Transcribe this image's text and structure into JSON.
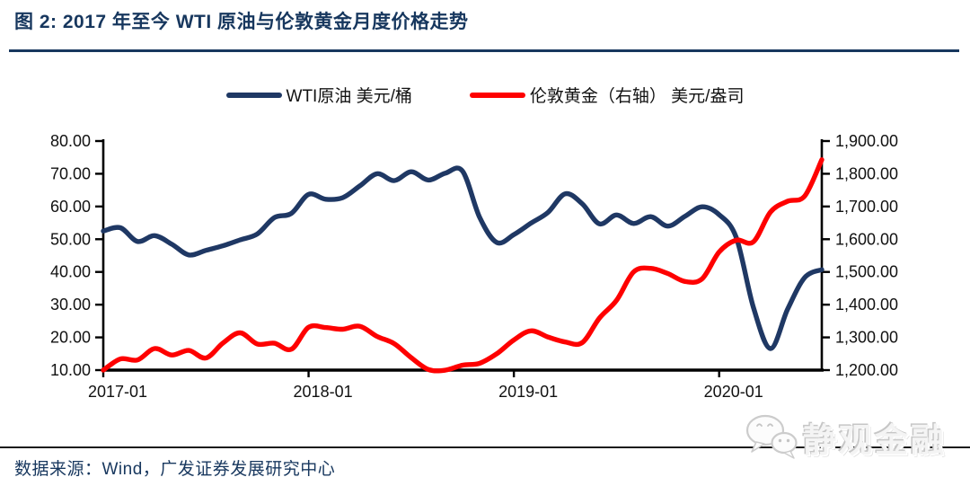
{
  "title": "图 2:  2017 年至今 WTI 原油与伦敦黄金月度价格走势",
  "legend": [
    {
      "label": "WTI原油 美元/桶",
      "color": "#1F3864"
    },
    {
      "label": "伦敦黄金（右轴） 美元/盎司",
      "color": "#FE0000"
    }
  ],
  "footer": {
    "text": "数据来源：Wind，广发证券发展研究中心"
  },
  "watermark": {
    "icon": "wechat-icon",
    "text": "静观金融"
  },
  "colors": {
    "title": "#17375E",
    "axis": "#000000",
    "wti_line": "#1F3864",
    "gold_line": "#FE0000"
  },
  "chart_data": {
    "type": "line",
    "title": "2017 年至今 WTI 原油与伦敦黄金月度价格走势",
    "grid": false,
    "legend_position": "top-center",
    "x": [
      "2017-01",
      "2017-02",
      "2017-03",
      "2017-04",
      "2017-05",
      "2017-06",
      "2017-07",
      "2017-08",
      "2017-09",
      "2017-10",
      "2017-11",
      "2017-12",
      "2018-01",
      "2018-02",
      "2018-03",
      "2018-04",
      "2018-05",
      "2018-06",
      "2018-07",
      "2018-08",
      "2018-09",
      "2018-10",
      "2018-11",
      "2018-12",
      "2019-01",
      "2019-02",
      "2019-03",
      "2019-04",
      "2019-05",
      "2019-06",
      "2019-07",
      "2019-08",
      "2019-09",
      "2019-10",
      "2019-11",
      "2019-12",
      "2020-01",
      "2020-02",
      "2020-03",
      "2020-04",
      "2020-05",
      "2020-06",
      "2020-07"
    ],
    "x_tick_labels": [
      "2017-01",
      "2018-01",
      "2019-01",
      "2020-01"
    ],
    "x_tick_indices": [
      0,
      12,
      24,
      36
    ],
    "left_axis": {
      "min": 10,
      "max": 80,
      "step": 10,
      "tick_labels": [
        "80.00",
        "70.00",
        "60.00",
        "50.00",
        "40.00",
        "30.00",
        "20.00",
        "10.00"
      ]
    },
    "right_axis": {
      "min": 1200,
      "max": 1900,
      "step": 100,
      "tick_labels": [
        "1,900.00",
        "1,800.00",
        "1,700.00",
        "1,600.00",
        "1,500.00",
        "1,400.00",
        "1,300.00",
        "1,200.00"
      ]
    },
    "series": [
      {
        "name": "WTI原油 美元/桶",
        "axis": "left",
        "color": "#1F3864",
        "unit": "美元/桶",
        "values": [
          52.5,
          53.5,
          49.3,
          51.1,
          48.5,
          45.2,
          46.6,
          48.0,
          49.8,
          51.6,
          56.6,
          57.9,
          63.7,
          62.2,
          62.7,
          66.3,
          70.0,
          67.9,
          70.6,
          68.1,
          70.2,
          70.8,
          56.7,
          49.0,
          51.4,
          54.9,
          58.2,
          63.9,
          60.8,
          54.7,
          57.4,
          54.8,
          56.9,
          54.0,
          57.0,
          59.9,
          57.5,
          50.5,
          29.2,
          16.6,
          28.6,
          38.3,
          40.7
        ]
      },
      {
        "name": "伦敦黄金（右轴） 美元/盎司",
        "axis": "right",
        "color": "#FE0000",
        "unit": "美元/盎司",
        "values": [
          1192,
          1234,
          1231,
          1266,
          1246,
          1260,
          1237,
          1283,
          1314,
          1280,
          1282,
          1264,
          1331,
          1330,
          1325,
          1334,
          1303,
          1281,
          1238,
          1202,
          1198,
          1215,
          1221,
          1250,
          1292,
          1320,
          1301,
          1286,
          1284,
          1359,
          1413,
          1500,
          1511,
          1495,
          1471,
          1479,
          1561,
          1597,
          1592,
          1683,
          1716,
          1732,
          1843
        ]
      }
    ]
  }
}
